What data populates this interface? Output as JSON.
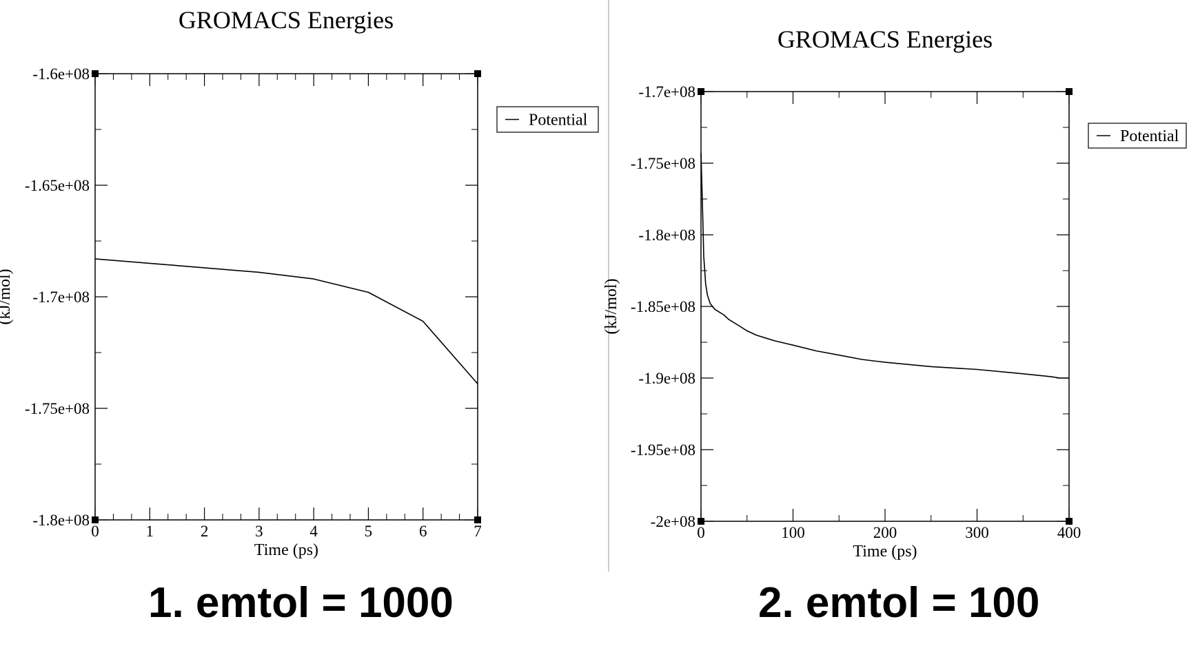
{
  "captions": [
    "1. emtol = 1000",
    "2. emtol = 100"
  ],
  "chart_data": [
    {
      "type": "line",
      "title": "GROMACS Energies",
      "xlabel": "Time (ps)",
      "ylabel": "(kJ/mol)",
      "xlim": [
        0,
        7
      ],
      "ylim": [
        -180000000,
        -160000000
      ],
      "x_ticks": [
        0,
        1,
        2,
        3,
        4,
        5,
        6,
        7
      ],
      "x_tick_labels": [
        "0",
        "1",
        "2",
        "3",
        "4",
        "5",
        "6",
        "7"
      ],
      "y_ticks": [
        -160000000,
        -165000000,
        -170000000,
        -175000000,
        -180000000
      ],
      "y_tick_labels": [
        "-1.6e+08",
        "-1.65e+08",
        "-1.7e+08",
        "-1.75e+08",
        "-1.8e+08"
      ],
      "legend": "right",
      "grid": false,
      "series": [
        {
          "name": "Potential",
          "color": "#000000",
          "x": [
            0,
            1,
            2,
            3,
            4,
            5,
            6,
            7
          ],
          "y": [
            -168300000,
            -168500000,
            -168700000,
            -168900000,
            -169200000,
            -169800000,
            -171100000,
            -173900000
          ]
        }
      ]
    },
    {
      "type": "line",
      "title": "GROMACS Energies",
      "xlabel": "Time (ps)",
      "ylabel": "(kJ/mol)",
      "xlim": [
        0,
        400
      ],
      "ylim": [
        -200000000,
        -170000000
      ],
      "x_ticks": [
        0,
        100,
        200,
        300,
        400
      ],
      "x_tick_labels": [
        "0",
        "100",
        "200",
        "300",
        "400"
      ],
      "y_ticks": [
        -170000000,
        -175000000,
        -180000000,
        -185000000,
        -190000000,
        -195000000,
        -200000000
      ],
      "y_tick_labels": [
        "-1.7e+08",
        "-1.75e+08",
        "-1.8e+08",
        "-1.85e+08",
        "-1.9e+08",
        "-1.95e+08",
        "-2e+08"
      ],
      "legend": "right",
      "grid": false,
      "series": [
        {
          "name": "Potential",
          "color": "#000000",
          "x": [
            0,
            1,
            2,
            3,
            5,
            7,
            10,
            15,
            20,
            25,
            30,
            40,
            50,
            60,
            70,
            80,
            100,
            125,
            150,
            175,
            200,
            250,
            300,
            350,
            380,
            390,
            400
          ],
          "y": [
            -174300000,
            -176500000,
            -179000000,
            -181500000,
            -183400000,
            -184200000,
            -184800000,
            -185200000,
            -185400000,
            -185600000,
            -185900000,
            -186300000,
            -186700000,
            -187000000,
            -187200000,
            -187400000,
            -187700000,
            -188100000,
            -188400000,
            -188700000,
            -188900000,
            -189200000,
            -189400000,
            -189700000,
            -189900000,
            -190000000,
            -190000000
          ]
        }
      ]
    }
  ]
}
